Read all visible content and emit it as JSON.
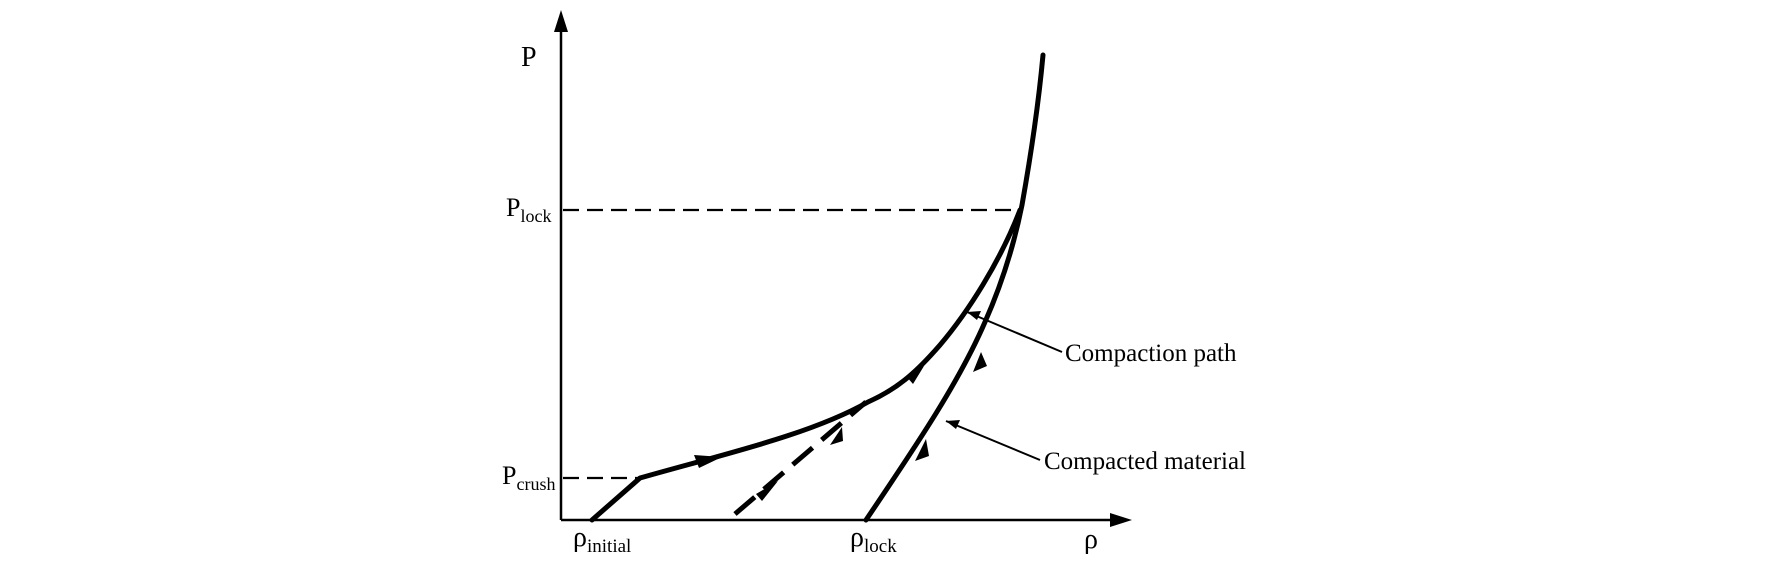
{
  "axes": {
    "y_label": "P",
    "x_label": "ρ"
  },
  "y_ticks": [
    {
      "main": "P",
      "sub": "lock"
    },
    {
      "main": "P",
      "sub": "crush"
    }
  ],
  "x_ticks": [
    {
      "main": "ρ",
      "sub": "initial"
    },
    {
      "main": "ρ",
      "sub": "lock"
    }
  ],
  "annotations": {
    "compaction_path": "Compaction path",
    "compacted_material": "Compacted material"
  }
}
